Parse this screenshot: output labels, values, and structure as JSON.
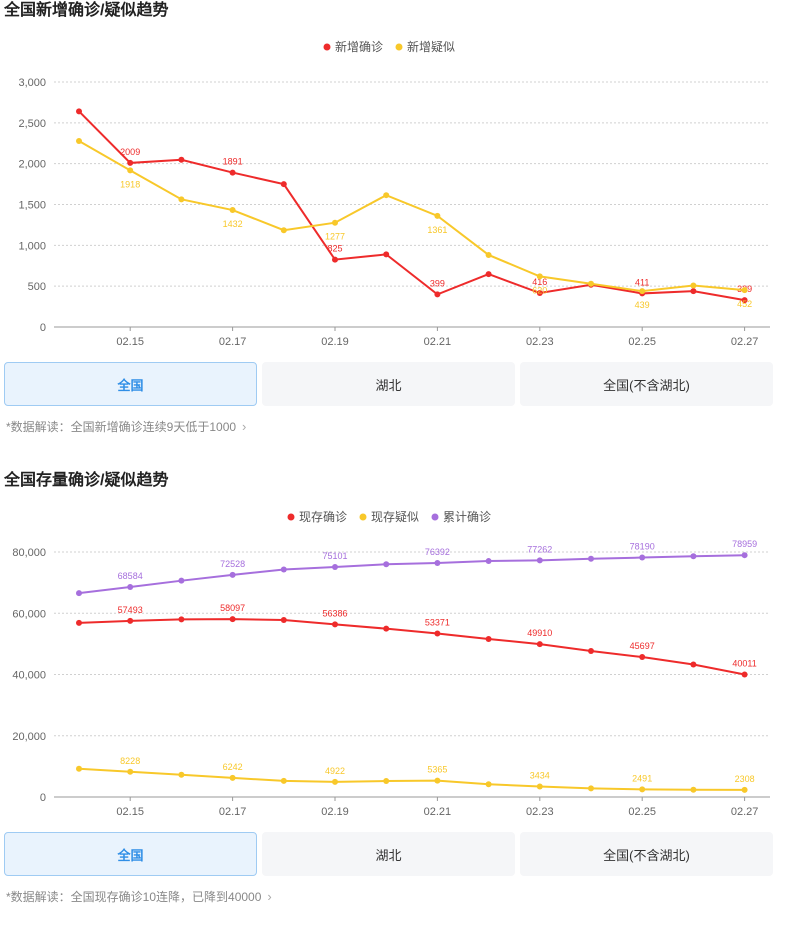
{
  "colors": {
    "red": "#ee2b2b",
    "yellow": "#f8c82a",
    "purple": "#a66fdd",
    "grid": "#d0d0d0",
    "axis": "#999999"
  },
  "section1": {
    "title": "全国新增确诊/疑似趋势",
    "tabs": [
      "全国",
      "湖北",
      "全国(不含湖北)"
    ],
    "active_tab": 0,
    "note": "*数据解读：全国新增确诊连续9天低于1000",
    "note_icon": "chevron-right-icon"
  },
  "section2": {
    "title": "全国存量确诊/疑似趋势",
    "tabs": [
      "全国",
      "湖北",
      "全国(不含湖北)"
    ],
    "active_tab": 0,
    "note": "*数据解读：全国现存确诊10连降，已降到40000",
    "note_icon": "chevron-right-icon"
  },
  "chart_data": [
    {
      "type": "line",
      "title": "全国新增确诊/疑似趋势",
      "x": [
        "02.14",
        "02.15",
        "02.16",
        "02.17",
        "02.18",
        "02.19",
        "02.20",
        "02.21",
        "02.22",
        "02.23",
        "02.24",
        "02.25",
        "02.26",
        "02.27"
      ],
      "x_tick_labels": [
        "02.15",
        "02.17",
        "02.19",
        "02.21",
        "02.23",
        "02.25",
        "02.27"
      ],
      "ylim": [
        0,
        3000
      ],
      "y_ticks": [
        0,
        500,
        1000,
        1500,
        2000,
        2500,
        3000
      ],
      "y_tick_labels": [
        "0",
        "500",
        "1,000",
        "1,500",
        "2,000",
        "2,500",
        "3,000"
      ],
      "grid": true,
      "legend_position": "top-center",
      "series": [
        {
          "name": "新增确诊",
          "color": "#ee2b2b",
          "values": [
            2641,
            2009,
            2048,
            1891,
            1749,
            825,
            889,
            399,
            648,
            416,
            517,
            411,
            439,
            329
          ],
          "labeled_indices": [
            1,
            3,
            5,
            7,
            9,
            11,
            13
          ]
        },
        {
          "name": "新增疑似",
          "color": "#f8c82a",
          "values": [
            2277,
            1918,
            1563,
            1432,
            1185,
            1277,
            1614,
            1361,
            882,
            620,
            530,
            439,
            508,
            452
          ],
          "labeled_indices": [
            1,
            3,
            5,
            7,
            9,
            11,
            13
          ]
        }
      ]
    },
    {
      "type": "line",
      "title": "全国存量确诊/疑似趋势",
      "x": [
        "02.14",
        "02.15",
        "02.16",
        "02.17",
        "02.18",
        "02.19",
        "02.20",
        "02.21",
        "02.22",
        "02.23",
        "02.24",
        "02.25",
        "02.26",
        "02.27"
      ],
      "x_tick_labels": [
        "02.15",
        "02.17",
        "02.19",
        "02.21",
        "02.23",
        "02.25",
        "02.27"
      ],
      "ylim": [
        0,
        80000
      ],
      "y_ticks": [
        0,
        20000,
        40000,
        60000,
        80000
      ],
      "y_tick_labels": [
        "0",
        "20,000",
        "40,000",
        "60,000",
        "80,000"
      ],
      "grid": true,
      "legend_position": "top-center",
      "series": [
        {
          "name": "现存确诊",
          "color": "#ee2b2b",
          "values": [
            56873,
            57493,
            58016,
            58097,
            57805,
            56386,
            54965,
            53371,
            51606,
            49910,
            47672,
            45697,
            43258,
            40011
          ],
          "labeled_indices": [
            1,
            3,
            5,
            7,
            9,
            11,
            13
          ]
        },
        {
          "name": "现存疑似",
          "color": "#f8c82a",
          "values": [
            9241,
            8228,
            7264,
            6242,
            5248,
            4922,
            5206,
            5365,
            4148,
            3434,
            2824,
            2491,
            2358,
            2308
          ],
          "labeled_indices": [
            1,
            3,
            5,
            7,
            9,
            11,
            13
          ]
        },
        {
          "name": "累计确诊",
          "color": "#a66fdd",
          "values": [
            66576,
            68584,
            70635,
            72528,
            74279,
            75101,
            75993,
            76392,
            77041,
            77262,
            77779,
            78190,
            78630,
            78959
          ],
          "labeled_indices": [
            1,
            3,
            5,
            7,
            9,
            11,
            13
          ]
        }
      ]
    }
  ]
}
